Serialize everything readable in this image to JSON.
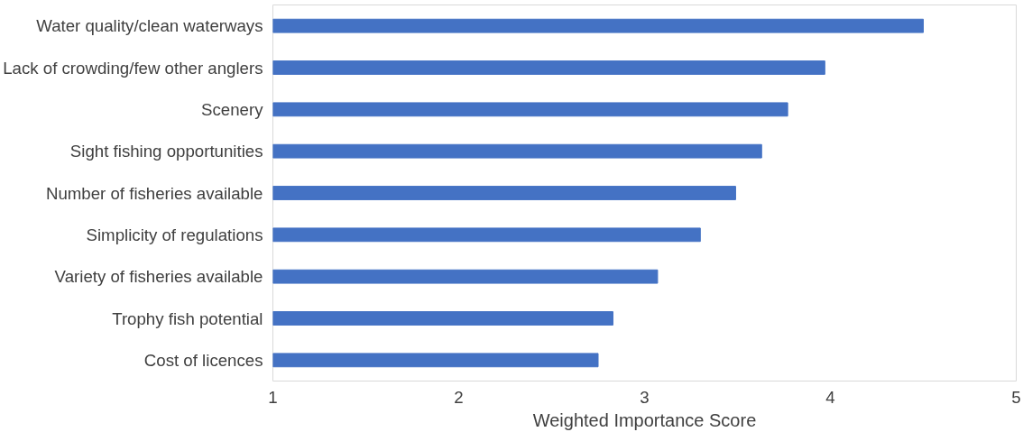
{
  "chart_data": {
    "type": "bar",
    "orientation": "horizontal",
    "xlabel": "Weighted Importance Score",
    "categories": [
      "Water quality/clean waterways",
      "Lack of crowding/few other anglers",
      "Scenery",
      "Sight fishing opportunities",
      "Number of fisheries available",
      "Simplicity of regulations",
      "Variety of fisheries available",
      "Trophy fish potential",
      "Cost of licences"
    ],
    "values": [
      4.5,
      3.97,
      3.77,
      3.63,
      3.49,
      3.3,
      3.07,
      2.83,
      2.75
    ],
    "color": "#4472c4",
    "xlim": [
      1,
      5
    ],
    "xticks": [
      1,
      2,
      3,
      4,
      5
    ],
    "grid": false
  }
}
